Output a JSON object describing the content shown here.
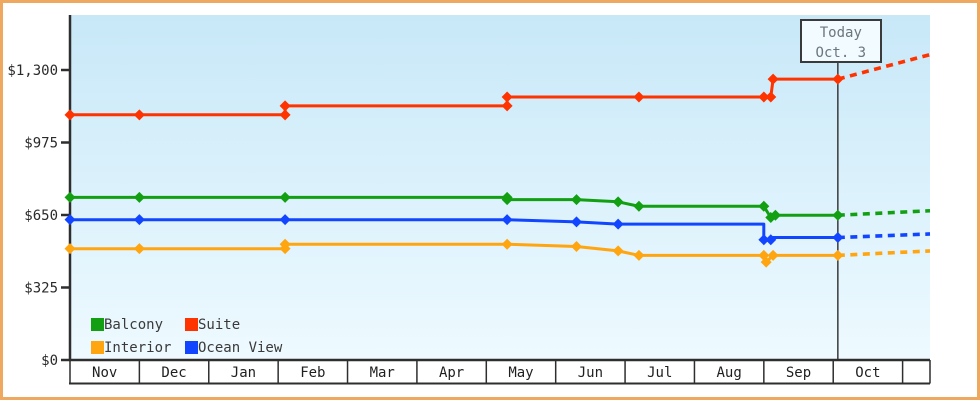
{
  "today_annotation": {
    "line1": "Today",
    "line2": "Oct. 3",
    "date": "Oct 3"
  },
  "y_axis": {
    "tick_labels": [
      "$0",
      "$325",
      "$650",
      "$975",
      "$1,300"
    ],
    "tick_values": [
      0,
      325,
      650,
      975,
      1300
    ],
    "range": [
      0,
      1300
    ]
  },
  "x_axis": {
    "months": [
      "Nov",
      "Dec",
      "Jan",
      "Feb",
      "Mar",
      "Apr",
      "May",
      "Jun",
      "Jul",
      "Aug",
      "Sep",
      "Oct"
    ]
  },
  "legend": {
    "items": [
      {
        "label": "Balcony",
        "color": "#12a012"
      },
      {
        "label": "Suite",
        "color": "#ff3300"
      },
      {
        "label": "Interior",
        "color": "#ffa510"
      },
      {
        "label": "Ocean View",
        "color": "#1245ff"
      }
    ]
  },
  "colors": {
    "frame_border": "#efa85f",
    "axis": "#2e2e2e",
    "plot_bg_top": "#c8e8f8",
    "plot_bg_bottom": "#eefaff",
    "today_line": "#3a3a3a"
  },
  "chart_data": {
    "type": "line",
    "title": "",
    "description": "Cruise cabin price history by category; solid step lines up to today (Oct. 3), dashed projected prices after",
    "ylim": [
      0,
      1300
    ],
    "grid": false,
    "legend_position": "bottom-left",
    "today": {
      "date": "Oct 3"
    },
    "series": [
      {
        "name": "Interior",
        "color": "#ffa510",
        "current_price": 469,
        "projected_price": 489,
        "points": [
          [
            "Nov 1",
            499
          ],
          [
            "Dec 1",
            499
          ],
          [
            "Feb 4",
            499
          ],
          [
            "Feb 4",
            519
          ],
          [
            "May 10",
            519
          ],
          [
            "Jun 10",
            509
          ],
          [
            "Jun 28",
            489
          ],
          [
            "Jul 7",
            469
          ],
          [
            "Sep 1",
            469
          ],
          [
            "Sep 2",
            439
          ],
          [
            "Sep 5",
            469
          ],
          [
            "Oct 3",
            469
          ]
        ]
      },
      {
        "name": "Ocean View",
        "color": "#1245ff",
        "current_price": 549,
        "projected_price": 565,
        "points": [
          [
            "Nov 1",
            629
          ],
          [
            "Dec 1",
            629
          ],
          [
            "Feb 4",
            629
          ],
          [
            "May 10",
            629
          ],
          [
            "Jun 10",
            619
          ],
          [
            "Jun 28",
            609
          ],
          [
            "Sep 1",
            609,
            false
          ],
          [
            "Sep 1",
            539
          ],
          [
            "Sep 4",
            539
          ],
          [
            "Sep 5",
            549,
            false
          ],
          [
            "Oct 3",
            549
          ]
        ]
      },
      {
        "name": "Balcony",
        "color": "#12a012",
        "current_price": 649,
        "projected_price": 669,
        "points": [
          [
            "Nov 1",
            729
          ],
          [
            "Dec 1",
            729
          ],
          [
            "Feb 4",
            729
          ],
          [
            "May 10",
            729
          ],
          [
            "May 10",
            719
          ],
          [
            "Jun 10",
            719
          ],
          [
            "Jun 28",
            709
          ],
          [
            "Jul 7",
            689
          ],
          [
            "Sep 1",
            689
          ],
          [
            "Sep 4",
            639
          ],
          [
            "Sep 6",
            649
          ],
          [
            "Oct 3",
            649
          ]
        ]
      },
      {
        "name": "Suite",
        "color": "#ff3300",
        "current_price": 1259,
        "projected_price": 1369,
        "points": [
          [
            "Nov 1",
            1099
          ],
          [
            "Dec 1",
            1099
          ],
          [
            "Feb 4",
            1099
          ],
          [
            "Feb 4",
            1139
          ],
          [
            "May 10",
            1139
          ],
          [
            "May 10",
            1179
          ],
          [
            "Jul 7",
            1179
          ],
          [
            "Sep 1",
            1179
          ],
          [
            "Sep 4",
            1179
          ],
          [
            "Sep 5",
            1259
          ],
          [
            "Oct 3",
            1259
          ]
        ]
      }
    ]
  }
}
